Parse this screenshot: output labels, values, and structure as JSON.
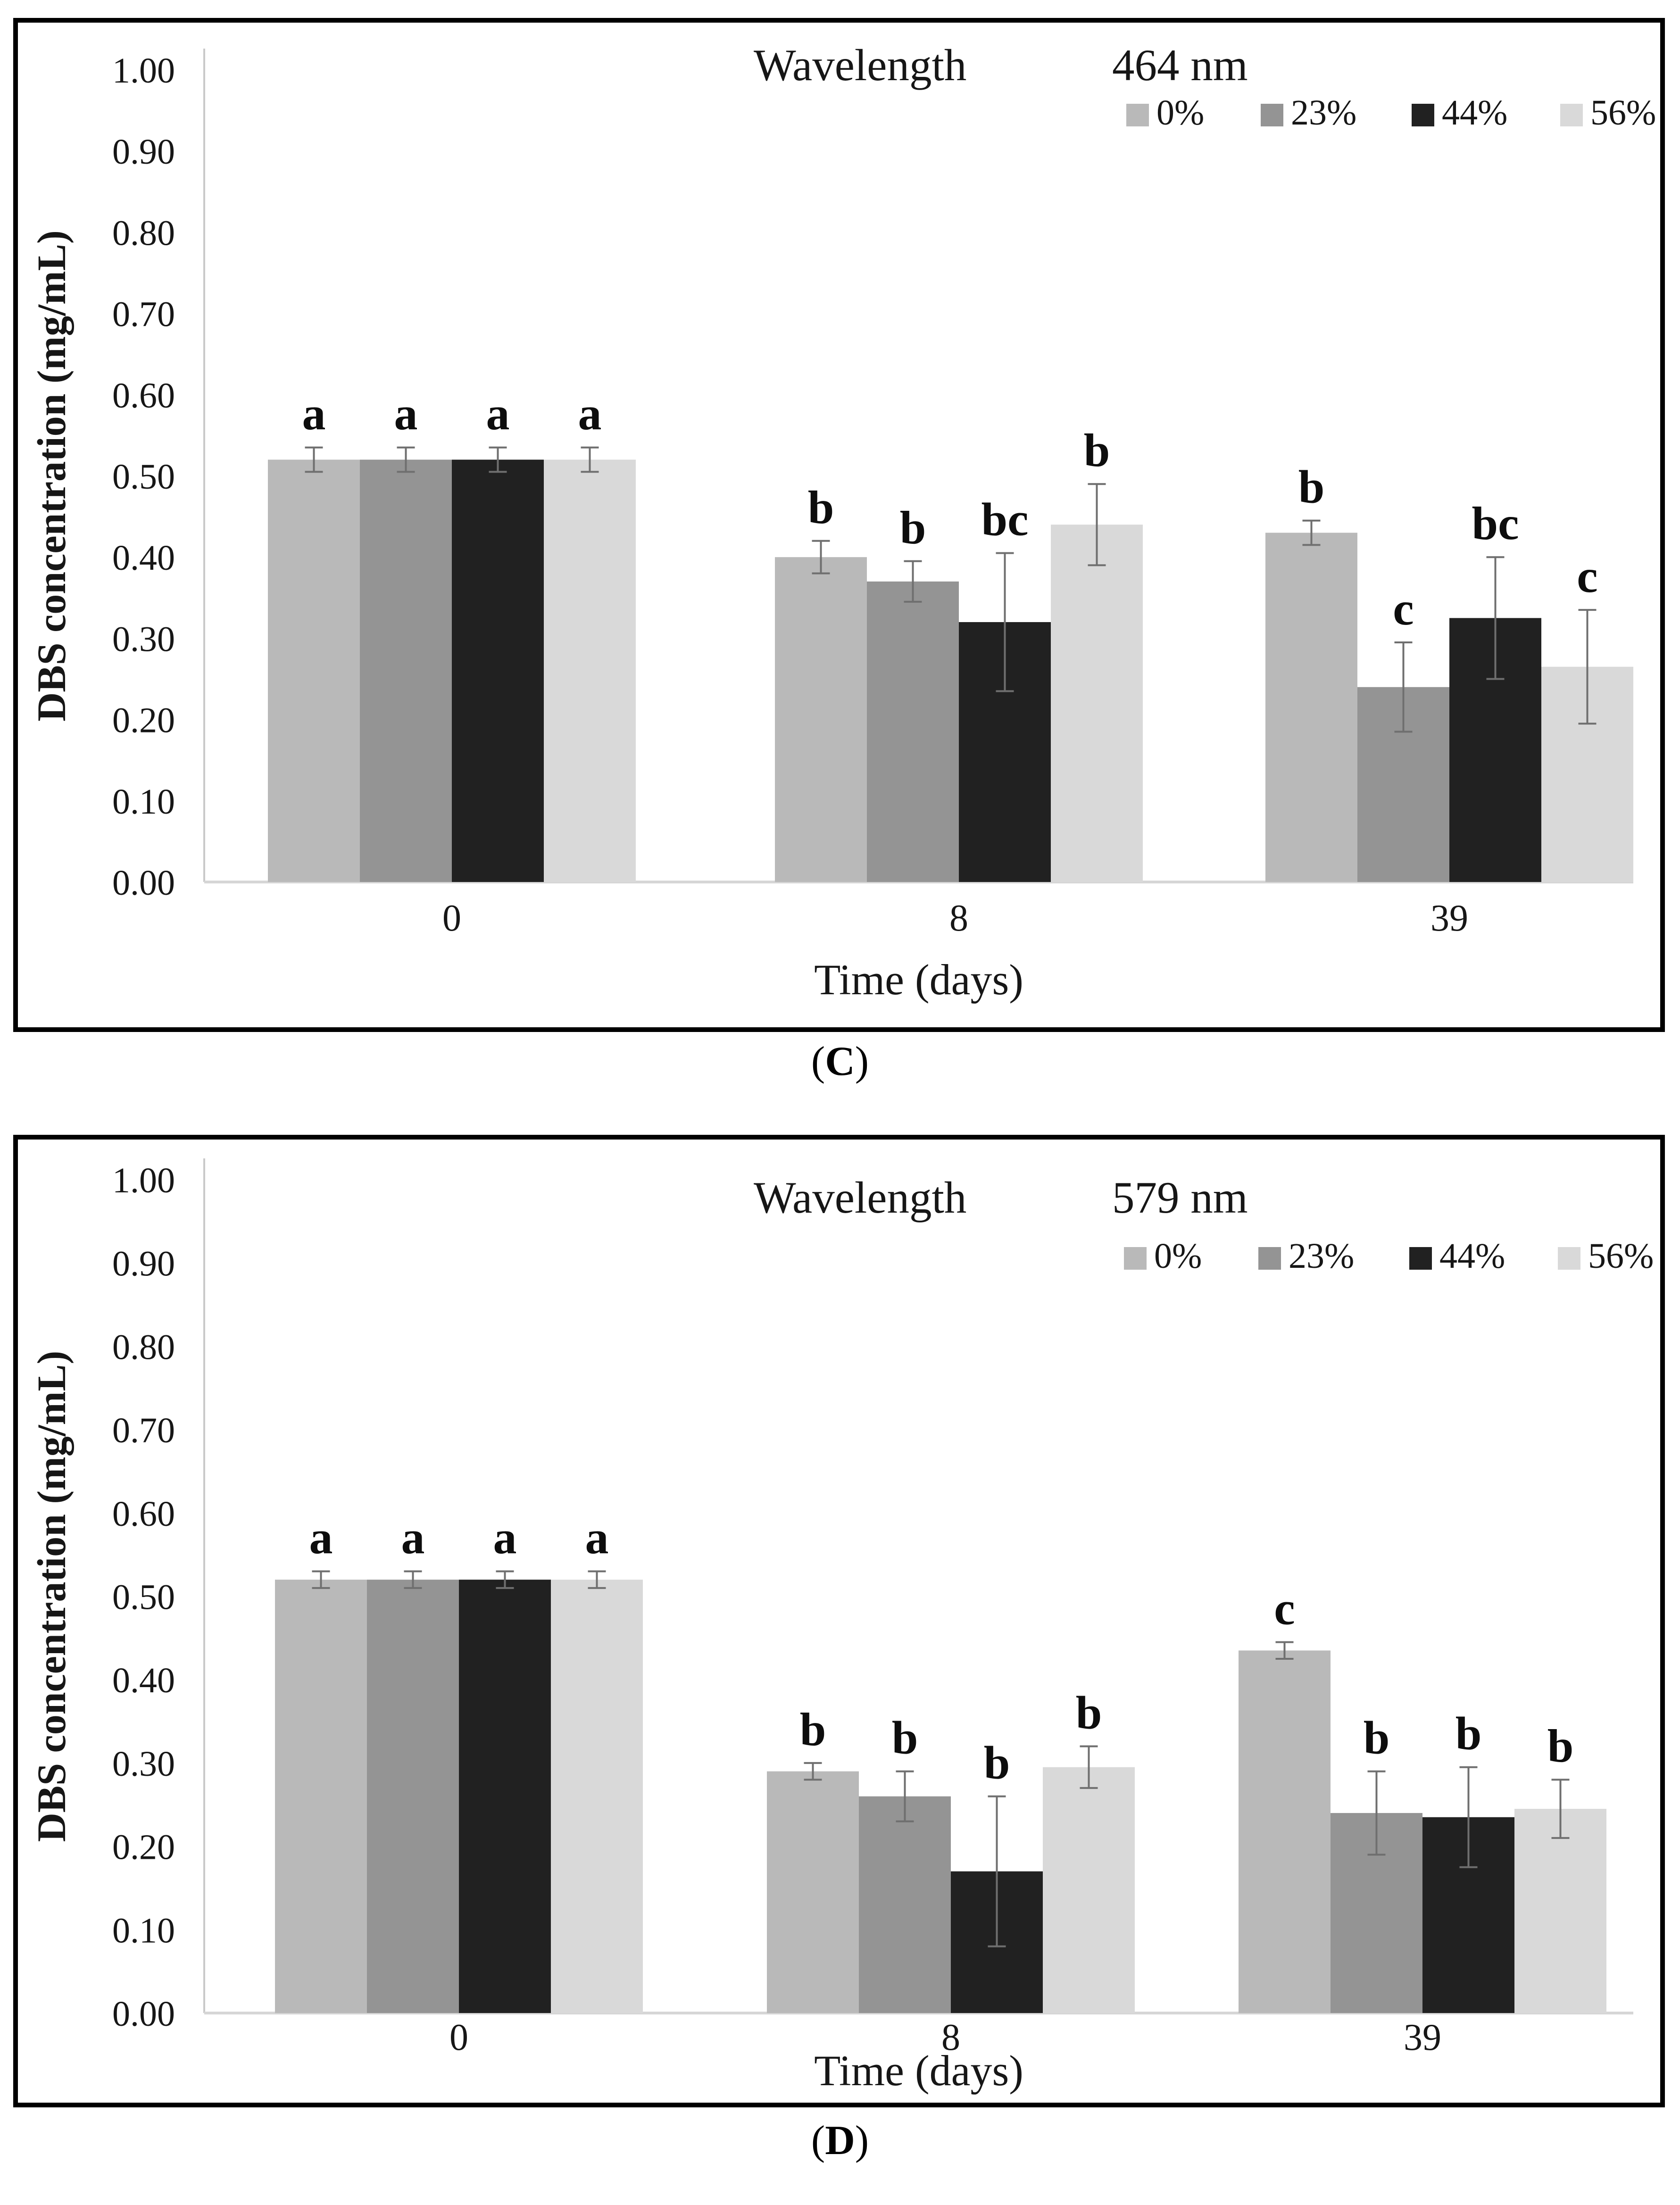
{
  "figure": {
    "background": "#ffffff",
    "panel_border_color": "#000000",
    "text_color": "#161616",
    "axis_line_color": "#c9c9c9",
    "baseline_color": "#d6d6d6",
    "error_bar_color": "#6f6f6f"
  },
  "captions": [
    {
      "open": "(",
      "letter": "C",
      "close": ")"
    },
    {
      "open": "(",
      "letter": "D",
      "close": ")"
    }
  ],
  "chart_data": [
    {
      "type": "bar",
      "panel": "C",
      "title": "Wavelength",
      "title_value": "464 nm",
      "ylabel": "DBS concentration (mg/mL)",
      "xlabel": "Time (days)",
      "ylim": [
        0.0,
        1.0
      ],
      "ytick_step": 0.1,
      "ytick_labels": [
        "0.00",
        "0.10",
        "0.20",
        "0.30",
        "0.40",
        "0.50",
        "0.60",
        "0.70",
        "0.80",
        "0.90",
        "1.00"
      ],
      "grid": false,
      "legend_position": "top-right",
      "categories": [
        "0",
        "8",
        "39"
      ],
      "series": [
        {
          "name": "0%",
          "color": "#b9b9b9",
          "values": [
            0.52,
            0.4,
            0.43
          ],
          "errors": [
            0.015,
            0.02,
            0.015
          ],
          "sig_letters": [
            "a",
            "b",
            "b"
          ]
        },
        {
          "name": "23%",
          "color": "#949494",
          "values": [
            0.52,
            0.37,
            0.24
          ],
          "errors": [
            0.015,
            0.025,
            0.055
          ],
          "sig_letters": [
            "a",
            "b",
            "c"
          ]
        },
        {
          "name": "44%",
          "color": "#212121",
          "values": [
            0.52,
            0.32,
            0.325
          ],
          "errors": [
            0.015,
            0.085,
            0.075
          ],
          "sig_letters": [
            "a",
            "bc",
            "bc"
          ]
        },
        {
          "name": "56%",
          "color": "#d9d9d9",
          "values": [
            0.52,
            0.44,
            0.265
          ],
          "errors": [
            0.015,
            0.05,
            0.07
          ],
          "sig_letters": [
            "a",
            "b",
            "c"
          ]
        }
      ]
    },
    {
      "type": "bar",
      "panel": "D",
      "title": "Wavelength",
      "title_value": "579 nm",
      "ylabel": "DBS concentration (mg/mL)",
      "xlabel": "Time (days)",
      "ylim": [
        0.0,
        1.0
      ],
      "ytick_step": 0.1,
      "ytick_labels": [
        "0.00",
        "0.10",
        "0.20",
        "0.30",
        "0.40",
        "0.50",
        "0.60",
        "0.70",
        "0.80",
        "0.90",
        "1.00"
      ],
      "grid": false,
      "legend_position": "top-right",
      "categories": [
        "0",
        "8",
        "39"
      ],
      "series": [
        {
          "name": "0%",
          "color": "#b9b9b9",
          "values": [
            0.52,
            0.29,
            0.435
          ],
          "errors": [
            0.01,
            0.01,
            0.01
          ],
          "sig_letters": [
            "a",
            "b",
            "c"
          ]
        },
        {
          "name": "23%",
          "color": "#949494",
          "values": [
            0.52,
            0.26,
            0.24
          ],
          "errors": [
            0.01,
            0.03,
            0.05
          ],
          "sig_letters": [
            "a",
            "b",
            "b"
          ]
        },
        {
          "name": "44%",
          "color": "#212121",
          "values": [
            0.52,
            0.17,
            0.235
          ],
          "errors": [
            0.01,
            0.09,
            0.06
          ],
          "sig_letters": [
            "a",
            "b",
            "b"
          ]
        },
        {
          "name": "56%",
          "color": "#d9d9d9",
          "values": [
            0.52,
            0.295,
            0.245
          ],
          "errors": [
            0.01,
            0.025,
            0.035
          ],
          "sig_letters": [
            "a",
            "b",
            "b"
          ]
        }
      ]
    }
  ]
}
